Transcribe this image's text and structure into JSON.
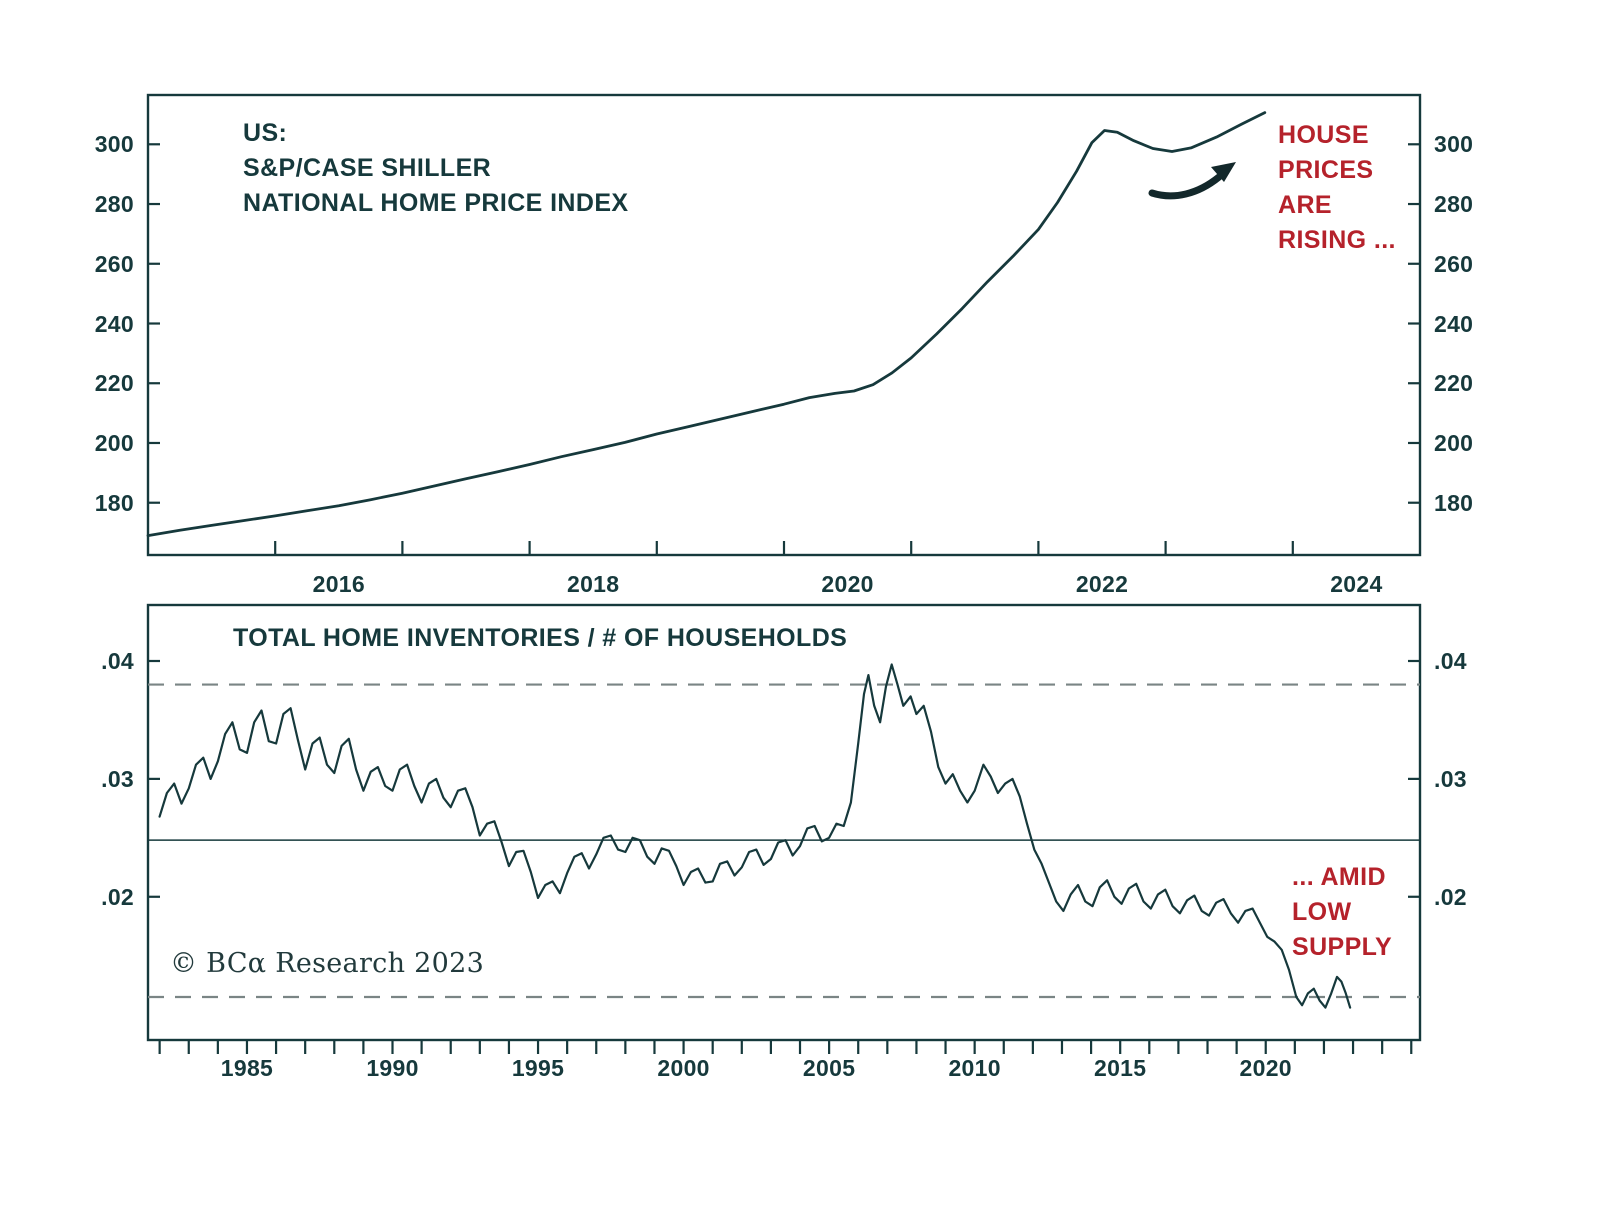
{
  "figure": {
    "copyright": "© BCα Research 2023",
    "background": "#ffffff",
    "accent_dark": "#16393c",
    "accent_red": "#b5222b",
    "dashed_gray": "#7a8585"
  },
  "chart_data": [
    {
      "type": "line",
      "title_lines": [
        "US:",
        "S&P/CASE SHILLER",
        "NATIONAL HOME PRICE INDEX"
      ],
      "annotation_lines": [
        "HOUSE",
        "PRICES",
        "ARE",
        "RISING ..."
      ],
      "x_domain": [
        2015,
        2025
      ],
      "y_domain": [
        162.5,
        316.5
      ],
      "y_ticks": [
        {
          "label": "300",
          "value": 300
        },
        {
          "label": "280",
          "value": 280
        },
        {
          "label": "260",
          "value": 260
        },
        {
          "label": "240",
          "value": 240
        },
        {
          "label": "220",
          "value": 220
        },
        {
          "label": "200",
          "value": 200
        },
        {
          "label": "180",
          "value": 180
        }
      ],
      "x_minor_ticks": [
        2016,
        2017,
        2018,
        2019,
        2020,
        2021,
        2022,
        2023,
        2024
      ],
      "x_labels": [
        {
          "text": "2016",
          "pos": 2016.5
        },
        {
          "text": "2018",
          "pos": 2018.5
        },
        {
          "text": "2020",
          "pos": 2020.5
        },
        {
          "text": "2022",
          "pos": 2022.5
        },
        {
          "text": "2024",
          "pos": 2024.5
        }
      ],
      "series": [
        [
          2015.0,
          169
        ],
        [
          2015.25,
          170.8
        ],
        [
          2015.5,
          172.4
        ],
        [
          2015.75,
          174
        ],
        [
          2016.0,
          175.6
        ],
        [
          2016.25,
          177.3
        ],
        [
          2016.5,
          179
        ],
        [
          2016.75,
          181
        ],
        [
          2017.0,
          183.2
        ],
        [
          2017.25,
          185.6
        ],
        [
          2017.5,
          188
        ],
        [
          2017.75,
          190.4
        ],
        [
          2018.0,
          192.8
        ],
        [
          2018.25,
          195.4
        ],
        [
          2018.5,
          197.8
        ],
        [
          2018.75,
          200.2
        ],
        [
          2019.0,
          203
        ],
        [
          2019.25,
          205.5
        ],
        [
          2019.5,
          208
        ],
        [
          2019.75,
          210.5
        ],
        [
          2020.0,
          213
        ],
        [
          2020.2,
          215.2
        ],
        [
          2020.4,
          216.6
        ],
        [
          2020.55,
          217.4
        ],
        [
          2020.7,
          219.5
        ],
        [
          2020.85,
          223.5
        ],
        [
          2021.0,
          228.5
        ],
        [
          2021.2,
          236.5
        ],
        [
          2021.4,
          245
        ],
        [
          2021.6,
          254
        ],
        [
          2021.8,
          262.5
        ],
        [
          2022.0,
          271.5
        ],
        [
          2022.15,
          280.5
        ],
        [
          2022.3,
          291
        ],
        [
          2022.42,
          300.5
        ],
        [
          2022.52,
          304.6
        ],
        [
          2022.62,
          304
        ],
        [
          2022.75,
          301.2
        ],
        [
          2022.9,
          298.6
        ],
        [
          2023.05,
          297.6
        ],
        [
          2023.2,
          298.8
        ],
        [
          2023.4,
          302.4
        ],
        [
          2023.6,
          306.8
        ],
        [
          2023.78,
          310.6
        ]
      ]
    },
    {
      "type": "line",
      "title": "TOTAL HOME INVENTORIES / # OF HOUSEHOLDS",
      "annotation_lines": [
        "... AMID",
        "LOW",
        "SUPPLY"
      ],
      "x_domain": [
        1981.6,
        2025.3
      ],
      "y_domain": [
        0.00785,
        0.04475
      ],
      "y_ticks": [
        {
          "label": ".04",
          "value": 0.04
        },
        {
          "label": ".03",
          "value": 0.03
        },
        {
          "label": ".02",
          "value": 0.02
        }
      ],
      "x_minor_ticks": [
        1982,
        1983,
        1984,
        1985,
        1986,
        1987,
        1988,
        1989,
        1990,
        1991,
        1992,
        1993,
        1994,
        1995,
        1996,
        1997,
        1998,
        1999,
        2000,
        2001,
        2002,
        2003,
        2004,
        2005,
        2006,
        2007,
        2008,
        2009,
        2010,
        2011,
        2012,
        2013,
        2014,
        2015,
        2016,
        2017,
        2018,
        2019,
        2020,
        2021,
        2022,
        2023,
        2024,
        2025
      ],
      "x_labels": [
        {
          "text": "1985",
          "pos": 1985
        },
        {
          "text": "1990",
          "pos": 1990
        },
        {
          "text": "1995",
          "pos": 1995
        },
        {
          "text": "2000",
          "pos": 2000
        },
        {
          "text": "2005",
          "pos": 2005
        },
        {
          "text": "2010",
          "pos": 2010
        },
        {
          "text": "2015",
          "pos": 2015
        },
        {
          "text": "2020",
          "pos": 2020
        }
      ],
      "reference_lines": {
        "mean_solid": 0.0248,
        "upper_dashed": 0.038,
        "lower_dashed": 0.0115
      },
      "series": [
        [
          1982.0,
          0.0268
        ],
        [
          1982.25,
          0.0288
        ],
        [
          1982.5,
          0.0296
        ],
        [
          1982.75,
          0.0279
        ],
        [
          1983.0,
          0.0292
        ],
        [
          1983.25,
          0.0312
        ],
        [
          1983.5,
          0.0318
        ],
        [
          1983.75,
          0.03
        ],
        [
          1984.0,
          0.0315
        ],
        [
          1984.25,
          0.0338
        ],
        [
          1984.5,
          0.0348
        ],
        [
          1984.75,
          0.0325
        ],
        [
          1985.0,
          0.0322
        ],
        [
          1985.25,
          0.0348
        ],
        [
          1985.5,
          0.0358
        ],
        [
          1985.75,
          0.0332
        ],
        [
          1986.0,
          0.033
        ],
        [
          1986.25,
          0.0355
        ],
        [
          1986.5,
          0.036
        ],
        [
          1986.75,
          0.0333
        ],
        [
          1987.0,
          0.0308
        ],
        [
          1987.25,
          0.033
        ],
        [
          1987.5,
          0.0335
        ],
        [
          1987.75,
          0.0312
        ],
        [
          1988.0,
          0.0305
        ],
        [
          1988.25,
          0.0328
        ],
        [
          1988.5,
          0.0334
        ],
        [
          1988.75,
          0.0308
        ],
        [
          1989.0,
          0.029
        ],
        [
          1989.25,
          0.0306
        ],
        [
          1989.5,
          0.031
        ],
        [
          1989.75,
          0.0294
        ],
        [
          1990.0,
          0.029
        ],
        [
          1990.25,
          0.0308
        ],
        [
          1990.5,
          0.0312
        ],
        [
          1990.75,
          0.0294
        ],
        [
          1991.0,
          0.028
        ],
        [
          1991.25,
          0.0296
        ],
        [
          1991.5,
          0.03
        ],
        [
          1991.75,
          0.0284
        ],
        [
          1992.0,
          0.0276
        ],
        [
          1992.25,
          0.029
        ],
        [
          1992.5,
          0.0292
        ],
        [
          1992.75,
          0.0276
        ],
        [
          1993.0,
          0.0252
        ],
        [
          1993.25,
          0.0262
        ],
        [
          1993.5,
          0.0264
        ],
        [
          1993.75,
          0.0246
        ],
        [
          1994.0,
          0.0226
        ],
        [
          1994.25,
          0.0238
        ],
        [
          1994.5,
          0.0239
        ],
        [
          1994.75,
          0.0221
        ],
        [
          1995.0,
          0.0199
        ],
        [
          1995.25,
          0.021
        ],
        [
          1995.5,
          0.0213
        ],
        [
          1995.75,
          0.0203
        ],
        [
          1996.0,
          0.022
        ],
        [
          1996.25,
          0.0234
        ],
        [
          1996.5,
          0.0237
        ],
        [
          1996.75,
          0.0224
        ],
        [
          1997.0,
          0.0236
        ],
        [
          1997.25,
          0.025
        ],
        [
          1997.5,
          0.0252
        ],
        [
          1997.75,
          0.024
        ],
        [
          1998.0,
          0.0238
        ],
        [
          1998.25,
          0.025
        ],
        [
          1998.5,
          0.0248
        ],
        [
          1998.75,
          0.0234
        ],
        [
          1999.0,
          0.0228
        ],
        [
          1999.25,
          0.0241
        ],
        [
          1999.5,
          0.0239
        ],
        [
          1999.75,
          0.0226
        ],
        [
          2000.0,
          0.021
        ],
        [
          2000.25,
          0.0221
        ],
        [
          2000.5,
          0.0224
        ],
        [
          2000.75,
          0.0212
        ],
        [
          2001.0,
          0.0213
        ],
        [
          2001.25,
          0.0228
        ],
        [
          2001.5,
          0.023
        ],
        [
          2001.75,
          0.0218
        ],
        [
          2002.0,
          0.0225
        ],
        [
          2002.25,
          0.0238
        ],
        [
          2002.5,
          0.024
        ],
        [
          2002.75,
          0.0227
        ],
        [
          2003.0,
          0.0232
        ],
        [
          2003.25,
          0.0246
        ],
        [
          2003.5,
          0.0248
        ],
        [
          2003.75,
          0.0235
        ],
        [
          2004.0,
          0.0243
        ],
        [
          2004.25,
          0.0258
        ],
        [
          2004.5,
          0.026
        ],
        [
          2004.75,
          0.0247
        ],
        [
          2005.0,
          0.025
        ],
        [
          2005.25,
          0.0262
        ],
        [
          2005.5,
          0.026
        ],
        [
          2005.75,
          0.028
        ],
        [
          2006.0,
          0.033
        ],
        [
          2006.2,
          0.0372
        ],
        [
          2006.35,
          0.0388
        ],
        [
          2006.55,
          0.0362
        ],
        [
          2006.75,
          0.0348
        ],
        [
          2006.95,
          0.0378
        ],
        [
          2007.15,
          0.0397
        ],
        [
          2007.35,
          0.038
        ],
        [
          2007.55,
          0.0362
        ],
        [
          2007.8,
          0.037
        ],
        [
          2008.0,
          0.0355
        ],
        [
          2008.25,
          0.0362
        ],
        [
          2008.5,
          0.034
        ],
        [
          2008.75,
          0.031
        ],
        [
          2009.0,
          0.0296
        ],
        [
          2009.25,
          0.0304
        ],
        [
          2009.5,
          0.029
        ],
        [
          2009.75,
          0.028
        ],
        [
          2010.0,
          0.029
        ],
        [
          2010.3,
          0.0312
        ],
        [
          2010.55,
          0.0302
        ],
        [
          2010.8,
          0.0288
        ],
        [
          2011.05,
          0.0296
        ],
        [
          2011.3,
          0.03
        ],
        [
          2011.55,
          0.0285
        ],
        [
          2011.8,
          0.0262
        ],
        [
          2012.05,
          0.024
        ],
        [
          2012.3,
          0.0228
        ],
        [
          2012.55,
          0.0212
        ],
        [
          2012.8,
          0.0196
        ],
        [
          2013.05,
          0.0188
        ],
        [
          2013.3,
          0.0202
        ],
        [
          2013.55,
          0.021
        ],
        [
          2013.8,
          0.0196
        ],
        [
          2014.05,
          0.0192
        ],
        [
          2014.3,
          0.0208
        ],
        [
          2014.55,
          0.0214
        ],
        [
          2014.8,
          0.02
        ],
        [
          2015.05,
          0.0194
        ],
        [
          2015.3,
          0.0207
        ],
        [
          2015.55,
          0.0211
        ],
        [
          2015.8,
          0.0196
        ],
        [
          2016.05,
          0.019
        ],
        [
          2016.3,
          0.0202
        ],
        [
          2016.55,
          0.0206
        ],
        [
          2016.8,
          0.0192
        ],
        [
          2017.05,
          0.0186
        ],
        [
          2017.3,
          0.0197
        ],
        [
          2017.55,
          0.0201
        ],
        [
          2017.8,
          0.0188
        ],
        [
          2018.05,
          0.0184
        ],
        [
          2018.3,
          0.0195
        ],
        [
          2018.55,
          0.0198
        ],
        [
          2018.8,
          0.0186
        ],
        [
          2019.05,
          0.0178
        ],
        [
          2019.3,
          0.0188
        ],
        [
          2019.55,
          0.019
        ],
        [
          2019.8,
          0.0178
        ],
        [
          2020.05,
          0.0166
        ],
        [
          2020.3,
          0.0162
        ],
        [
          2020.55,
          0.0155
        ],
        [
          2020.8,
          0.0138
        ],
        [
          2021.05,
          0.0115
        ],
        [
          2021.25,
          0.0108
        ],
        [
          2021.45,
          0.0118
        ],
        [
          2021.65,
          0.0122
        ],
        [
          2021.85,
          0.0112
        ],
        [
          2022.05,
          0.0106
        ],
        [
          2022.25,
          0.0118
        ],
        [
          2022.45,
          0.0132
        ],
        [
          2022.6,
          0.0128
        ],
        [
          2022.75,
          0.0118
        ],
        [
          2022.9,
          0.0106
        ]
      ]
    }
  ]
}
